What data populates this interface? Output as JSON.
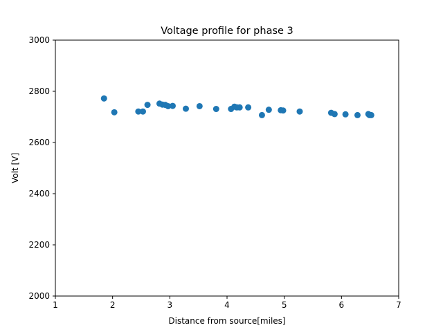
{
  "chart_data": {
    "type": "scatter",
    "title": "Voltage profile for phase 3",
    "xlabel": "Distance from source[miles]",
    "ylabel": "Volt [V]",
    "xlim": [
      1,
      7
    ],
    "ylim": [
      2000,
      3000
    ],
    "xticks": [
      "1",
      "2",
      "3",
      "4",
      "5",
      "6",
      "7"
    ],
    "yticks": [
      "2000",
      "2200",
      "2400",
      "2600",
      "2800",
      "3000"
    ],
    "grid": false,
    "series": [
      {
        "color": "#1f77b4",
        "points": [
          {
            "x": 1.85,
            "y": 2772
          },
          {
            "x": 2.03,
            "y": 2718
          },
          {
            "x": 2.45,
            "y": 2721
          },
          {
            "x": 2.53,
            "y": 2721
          },
          {
            "x": 2.61,
            "y": 2747
          },
          {
            "x": 2.82,
            "y": 2752
          },
          {
            "x": 2.87,
            "y": 2748
          },
          {
            "x": 2.92,
            "y": 2747
          },
          {
            "x": 2.97,
            "y": 2742
          },
          {
            "x": 3.05,
            "y": 2743
          },
          {
            "x": 3.28,
            "y": 2732
          },
          {
            "x": 3.52,
            "y": 2742
          },
          {
            "x": 3.81,
            "y": 2731
          },
          {
            "x": 4.07,
            "y": 2731
          },
          {
            "x": 4.13,
            "y": 2740
          },
          {
            "x": 4.17,
            "y": 2737
          },
          {
            "x": 4.22,
            "y": 2737
          },
          {
            "x": 4.37,
            "y": 2737
          },
          {
            "x": 4.61,
            "y": 2707
          },
          {
            "x": 4.73,
            "y": 2728
          },
          {
            "x": 4.94,
            "y": 2726
          },
          {
            "x": 4.98,
            "y": 2725
          },
          {
            "x": 5.27,
            "y": 2721
          },
          {
            "x": 5.82,
            "y": 2716
          },
          {
            "x": 5.88,
            "y": 2711
          },
          {
            "x": 6.07,
            "y": 2710
          },
          {
            "x": 6.28,
            "y": 2707
          },
          {
            "x": 6.47,
            "y": 2711
          },
          {
            "x": 6.49,
            "y": 2707
          },
          {
            "x": 6.52,
            "y": 2707
          }
        ]
      }
    ]
  }
}
